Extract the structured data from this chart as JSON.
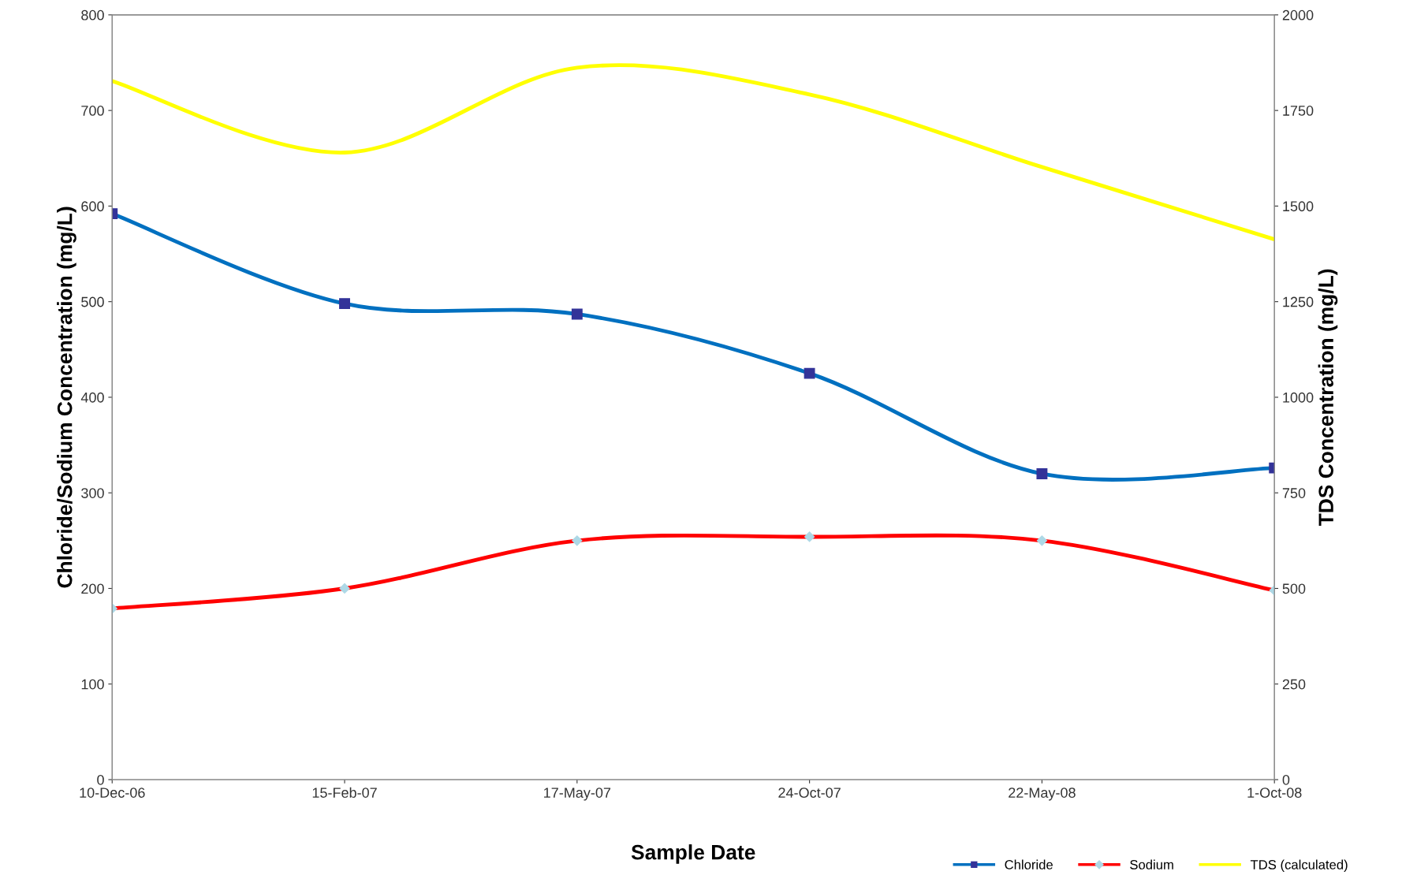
{
  "chart_data": {
    "type": "line",
    "xlabel": "Sample Date",
    "ylabel": "Chloride/Sodium Concentration (mg/L)",
    "y2label": "TDS Concentration (mg/L)",
    "categories": [
      "10-Dec-06",
      "15-Feb-07",
      "17-May-07",
      "24-Oct-07",
      "22-May-08",
      "1-Oct-08"
    ],
    "series": [
      {
        "name": "Chloride",
        "color": "#0070c0",
        "marker": "square",
        "values": [
          592,
          498,
          487,
          425,
          320,
          326
        ]
      },
      {
        "name": "Sodium",
        "color": "#ff0000",
        "marker": "diamond",
        "values": [
          179,
          200,
          250,
          254,
          250,
          198
        ]
      },
      {
        "name": "TDS (calculated)",
        "color": "#ffff00",
        "marker": "none",
        "axis": "y2",
        "values": [
          1827,
          1640,
          1862,
          1792,
          1602,
          1413
        ]
      }
    ],
    "ylim": [
      0,
      800
    ],
    "yticks": [
      0,
      100,
      200,
      300,
      400,
      500,
      600,
      700,
      800
    ],
    "y2lim": [
      0,
      2000
    ],
    "y2ticks": [
      0,
      250,
      500,
      750,
      1000,
      1250,
      1500,
      1750,
      2000
    ],
    "grid": false,
    "legend": "bottom right",
    "line_style": "solid"
  }
}
